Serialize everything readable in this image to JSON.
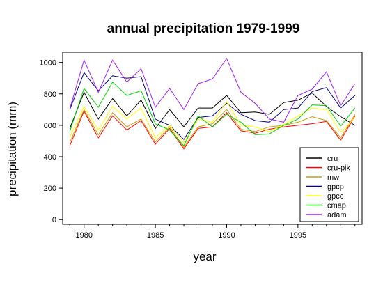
{
  "chart_data": {
    "type": "line",
    "title": "annual precipitation 1979-1999",
    "xlabel": "year",
    "ylabel": "precipitation (mm)",
    "xlim": [
      1978.5,
      1999.5
    ],
    "ylim": [
      -30,
      1065
    ],
    "x_ticks": [
      1980,
      1985,
      1990,
      1995
    ],
    "y_ticks": [
      0,
      200,
      400,
      600,
      800,
      1000
    ],
    "legend_position": "bottom-right",
    "x": [
      1979,
      1980,
      1981,
      1982,
      1983,
      1984,
      1985,
      1986,
      1987,
      1988,
      1989,
      1990,
      1991,
      1992,
      1993,
      1994,
      1995,
      1996,
      1997,
      1998,
      1999
    ],
    "series": [
      {
        "name": "cru",
        "color": "#000000",
        "values": [
          580,
          810,
          640,
          770,
          660,
          760,
          580,
          700,
          590,
          710,
          710,
          790,
          680,
          685,
          670,
          745,
          760,
          805,
          720,
          655,
          600
        ]
      },
      {
        "name": "cru-pik",
        "color": "#ff0000",
        "values": [
          470,
          690,
          520,
          660,
          570,
          630,
          480,
          580,
          450,
          580,
          590,
          680,
          565,
          550,
          575,
          590,
          600,
          610,
          625,
          505,
          660
        ]
      },
      {
        "name": "mw",
        "color": "#c8a000",
        "values": [
          490,
          700,
          540,
          680,
          590,
          640,
          495,
          590,
          460,
          590,
          610,
          700,
          575,
          560,
          590,
          600,
          620,
          655,
          630,
          520,
          670
        ]
      },
      {
        "name": "gpcp",
        "color": "#000080",
        "values": [
          700,
          935,
          820,
          915,
          900,
          910,
          640,
          600,
          510,
          650,
          660,
          740,
          670,
          630,
          620,
          700,
          710,
          815,
          840,
          710,
          790
        ]
      },
      {
        "name": "gpcc",
        "color": "#ffff00",
        "values": [
          525,
          720,
          570,
          720,
          640,
          710,
          520,
          600,
          490,
          640,
          620,
          750,
          600,
          590,
          560,
          605,
          660,
          710,
          700,
          555,
          650
        ]
      },
      {
        "name": "cmap",
        "color": "#00cc00",
        "values": [
          560,
          835,
          715,
          875,
          790,
          820,
          610,
          570,
          470,
          660,
          590,
          670,
          620,
          540,
          545,
          600,
          640,
          730,
          725,
          595,
          710
        ]
      },
      {
        "name": "adam",
        "color": "#a020f0",
        "values": [
          705,
          1015,
          810,
          1015,
          875,
          960,
          715,
          835,
          700,
          865,
          895,
          1025,
          810,
          740,
          640,
          620,
          790,
          830,
          940,
          725,
          865
        ]
      }
    ]
  }
}
